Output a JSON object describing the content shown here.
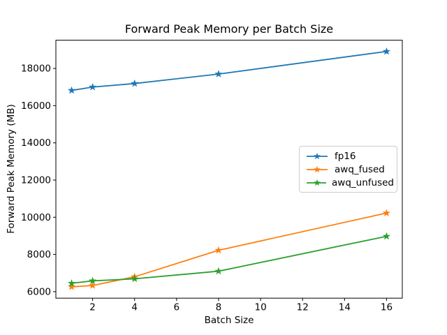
{
  "chart_data": {
    "type": "line",
    "title": "Forward Peak Memory per Batch Size",
    "xlabel": "Batch Size",
    "ylabel": "Forward Peak Memory (MB)",
    "x": [
      1,
      2,
      4,
      8,
      16
    ],
    "series": [
      {
        "name": "fp16",
        "color": "#1f77b4",
        "values": [
          16820,
          17000,
          17190,
          17700,
          18915
        ]
      },
      {
        "name": "awq_fused",
        "color": "#ff7f0e",
        "values": [
          6260,
          6330,
          6800,
          8225,
          10225
        ]
      },
      {
        "name": "awq_unfused",
        "color": "#2ca02c",
        "values": [
          6450,
          6580,
          6690,
          7100,
          8975
        ]
      }
    ],
    "xlim": [
      0.25,
      16.75
    ],
    "ylim": [
      5650,
      19520
    ],
    "xticks": [
      2,
      4,
      6,
      8,
      10,
      12,
      14,
      16
    ],
    "yticks": [
      6000,
      8000,
      10000,
      12000,
      14000,
      16000,
      18000
    ],
    "grid": false,
    "marker": "star",
    "legend_position": "center-right",
    "spine_color": "#000000",
    "background_color": "#ffffff"
  }
}
